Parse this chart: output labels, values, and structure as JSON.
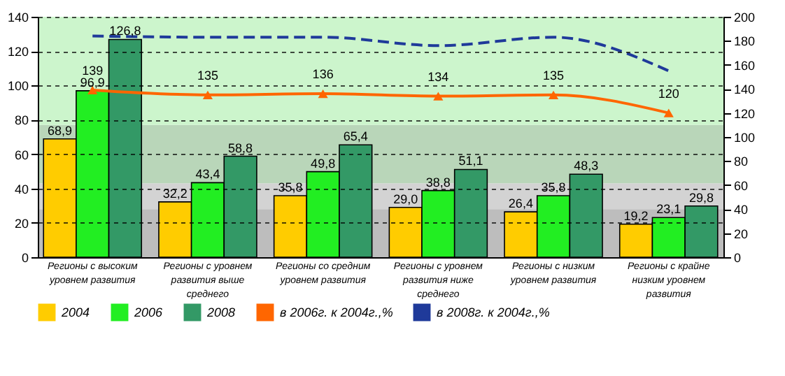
{
  "chart_data": {
    "type": "bar",
    "categories": [
      "Регионы с высоким уровнем развития",
      "Регионы с уровнем развития выше среднего",
      "Регионы со средним уровнем развития",
      "Регионы с уровнем развития ниже среднего",
      "Регионы с низким уровнем развития",
      "Регионы с крайне низким уровнем развития"
    ],
    "series": [
      {
        "name": "2004",
        "color": "#ffcc00",
        "values": [
          68.9,
          32.2,
          35.8,
          29.0,
          26.4,
          19.2
        ],
        "value_labels": [
          "68,9",
          "32,2",
          "35,8",
          "29,0",
          "26,4",
          "19,2"
        ]
      },
      {
        "name": "2006",
        "color": "#22ee22",
        "values": [
          96.9,
          43.4,
          49.8,
          38.8,
          35.8,
          23.1
        ],
        "value_labels": [
          "96,9",
          "43,4",
          "49,8",
          "38,8",
          "35,8",
          "23,1"
        ]
      },
      {
        "name": "2008",
        "color": "#339966",
        "values": [
          126.8,
          58.8,
          65.4,
          51.1,
          48.3,
          29.8
        ],
        "value_labels": [
          "126,8",
          "58,8",
          "65,4",
          "51,1",
          "48,3",
          "29,8"
        ]
      },
      {
        "name": "в 2006г. к 2004г.,%",
        "type": "line",
        "axis": "y2",
        "color": "#ff6600",
        "marker": "triangle",
        "line_style": "solid",
        "values": [
          139,
          135,
          136,
          134,
          135,
          120
        ],
        "value_labels": [
          "139",
          "135",
          "136",
          "134",
          "135",
          "120"
        ]
      },
      {
        "name": "в 2008г. к 2004г.,%",
        "type": "line",
        "axis": "y2",
        "color": "#1f3a9a",
        "marker": "none",
        "line_style": "dashed",
        "values": [
          184,
          183,
          183,
          176,
          183,
          155
        ]
      }
    ],
    "ylim": [
      0,
      140
    ],
    "yticks": [
      0,
      20,
      40,
      60,
      80,
      100,
      120,
      140
    ],
    "y2lim": [
      0,
      200
    ],
    "y2ticks": [
      0,
      20,
      40,
      60,
      80,
      100,
      120,
      140,
      160,
      180,
      200
    ],
    "bands": [
      {
        "axis": "y",
        "from": 0,
        "to": 28,
        "color": "#bdbdbd"
      },
      {
        "axis": "y",
        "from": 28,
        "to": 43,
        "color": "#d3d3d3"
      },
      {
        "axis": "y",
        "from": 43,
        "to": 77,
        "color": "#b9d6b9"
      },
      {
        "axis": "y",
        "from": 77,
        "to": 140,
        "color": "#ccf5cc"
      }
    ],
    "grid": "y",
    "legend": "bottom"
  }
}
